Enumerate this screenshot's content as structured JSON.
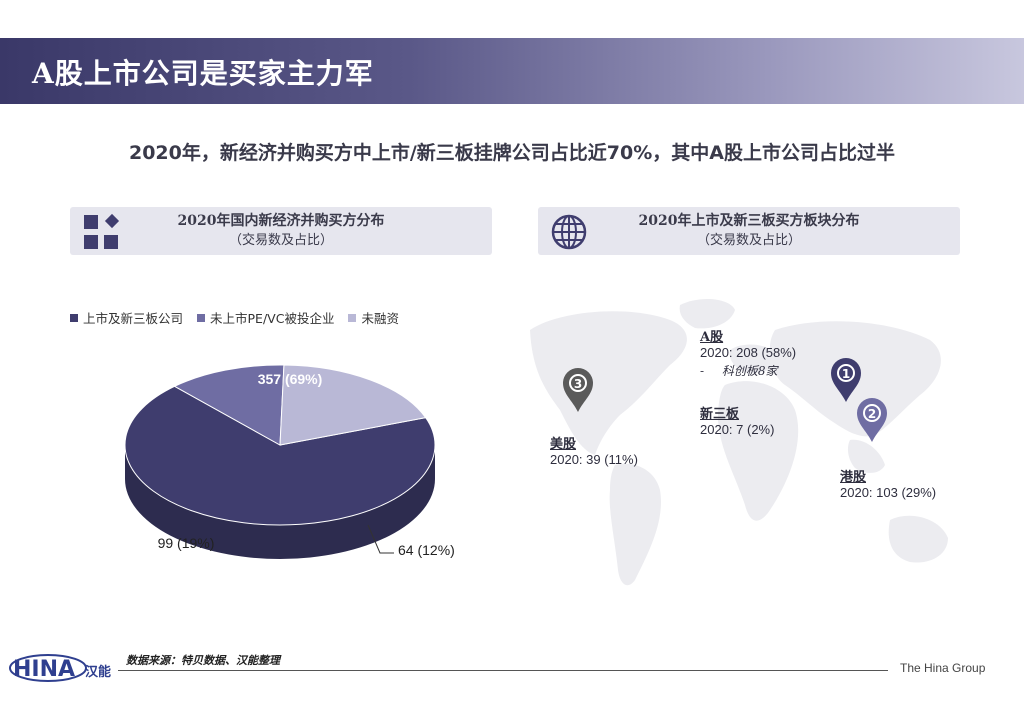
{
  "header": {
    "title": "A股上市公司是买家主力军"
  },
  "subtitle": "2020年，新经济并购买方中上市/新三板挂牌公司占比近70%，其中A股上市公司占比过半",
  "left_panel": {
    "title": "2020年国内新经济并购买方分布",
    "subtitle": "（交易数及占比）"
  },
  "right_panel": {
    "title": "2020年上市及新三板买方板块分布",
    "subtitle": "（交易数及占比）"
  },
  "chart_data": {
    "type": "pie",
    "categories": [
      "上市及新三板公司",
      "未上市PE/VC被投企业",
      "未融资"
    ],
    "values": [
      357,
      64,
      99
    ],
    "labels": [
      "357 (69%)",
      "64 (12%)",
      "99 (19%)"
    ],
    "colors": [
      "#3f3d6e",
      "#6f6da3",
      "#b9b8d6"
    ],
    "legend_position": "top-left"
  },
  "map": {
    "pins": [
      {
        "number": "1",
        "color": "#3f3d6e"
      },
      {
        "number": "2",
        "color": "#6f6da3"
      },
      {
        "number": "3",
        "color": "#5a5a5a"
      }
    ],
    "labels": {
      "a_share": {
        "name": "A股",
        "value": "2020: 208 (58%)",
        "note_dash": "-",
        "note": "科创板8家"
      },
      "neeq": {
        "name": "新三板",
        "value": "2020: 7 (2%)"
      },
      "us": {
        "name": "美股",
        "value": "2020: 39 (11%)"
      },
      "hk": {
        "name": "港股",
        "value": "2020: 103 (29%)"
      }
    }
  },
  "footer": {
    "source": "数据来源：特贝数据、汉能整理",
    "brand": "The Hina Group",
    "logo_text": "HINA",
    "logo_cn": "汉能"
  }
}
